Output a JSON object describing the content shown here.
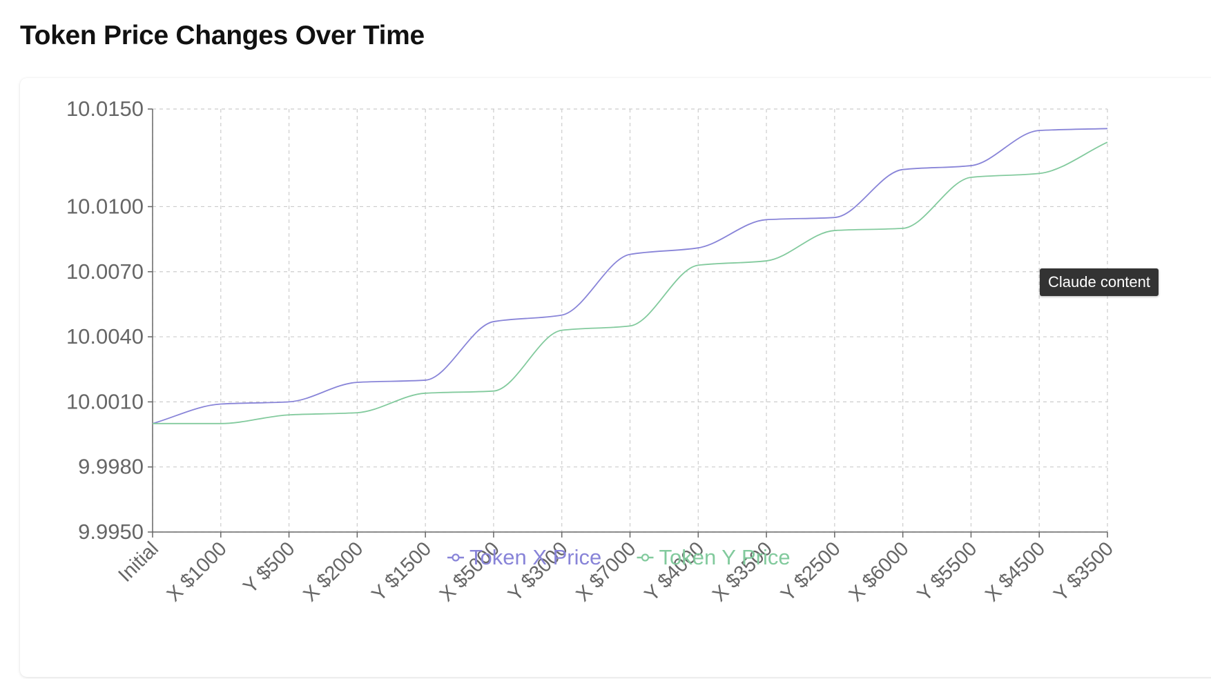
{
  "page": {
    "title": "Token Price Changes Over Time",
    "tooltip": "Claude content"
  },
  "colors": {
    "token_x": "#8884d8",
    "token_y": "#82ca9d",
    "axis": "#666666",
    "grid": "#cccccc",
    "tick_text": "#666666"
  },
  "chart_data": {
    "type": "line",
    "title": "Token Price Changes Over Time",
    "xlabel": "",
    "ylabel": "",
    "categories": [
      "Initial",
      "X $1000",
      "Y $500",
      "X $2000",
      "Y $1500",
      "X $5000",
      "Y $3000",
      "X $7000",
      "Y $4000",
      "X $3500",
      "Y $2500",
      "X $6000",
      "Y $5500",
      "X $4500",
      "Y $3500"
    ],
    "yticks": [
      9.995,
      9.998,
      10.001,
      10.004,
      10.007,
      10.01,
      10.015
    ],
    "ytick_labels": [
      "9.9950",
      "9.9980",
      "10.0010",
      "10.0040",
      "10.0070",
      "10.0100",
      "10.0150"
    ],
    "ylim": [
      9.995,
      10.015
    ],
    "y_scale": "non-uniform (spacing between 10.0100 and 10.0150 equals 1.5 of the lower steps)",
    "grid": true,
    "legend_position": "bottom-center",
    "curve": "monotone",
    "series": [
      {
        "name": "Token X Price",
        "color": "#8884d8",
        "values": [
          10.0,
          10.0009,
          10.001,
          10.0019,
          10.002,
          10.0047,
          10.005,
          10.0078,
          10.0081,
          10.0094,
          10.0095,
          10.0119,
          10.0121,
          10.0139,
          10.014
        ]
      },
      {
        "name": "Token Y Price",
        "color": "#82ca9d",
        "values": [
          10.0,
          10.0,
          10.0004,
          10.0005,
          10.0014,
          10.0015,
          10.0043,
          10.0045,
          10.0073,
          10.0075,
          10.0089,
          10.009,
          10.0115,
          10.0117,
          10.0133
        ]
      }
    ]
  }
}
